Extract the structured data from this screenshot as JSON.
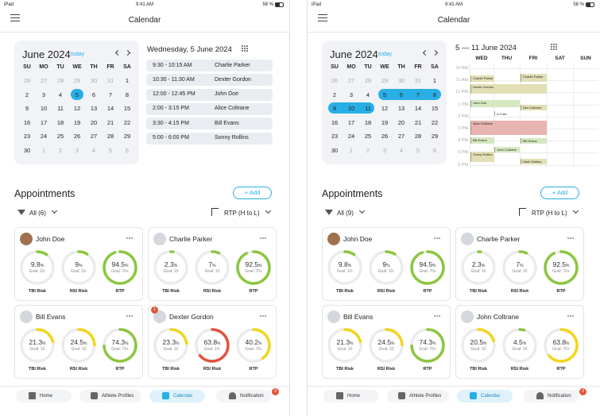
{
  "screens": [
    {
      "status": {
        "device": "iPad",
        "time": "9:41 AM",
        "battery": "58 %"
      },
      "title": "Calendar",
      "calendar": {
        "month": "June 2024",
        "today": "today",
        "weekdays": [
          "SU",
          "MO",
          "TU",
          "WE",
          "TH",
          "FR",
          "SA"
        ],
        "days": [
          [
            26,
            27,
            28,
            29,
            30,
            31,
            1
          ],
          [
            2,
            3,
            4,
            5,
            6,
            7,
            8
          ],
          [
            9,
            10,
            11,
            12,
            13,
            14,
            15
          ],
          [
            16,
            17,
            18,
            19,
            20,
            21,
            22
          ],
          [
            23,
            24,
            25,
            26,
            27,
            28,
            29
          ],
          [
            30,
            1,
            2,
            3,
            4,
            5,
            6
          ]
        ]
      },
      "day": {
        "title": "Wednesday, 5 June 2024",
        "events": [
          {
            "time": "9:30 - 10:15 AM",
            "name": "Charlie Parker"
          },
          {
            "time": "10:30 - 11:30 AM",
            "name": "Dexter Gordon"
          },
          {
            "time": "12:00 - 12:45 PM",
            "name": "John Doe"
          },
          {
            "time": "2:00 - 3:15 PM",
            "name": "Alice Coltrane"
          },
          {
            "time": "3:30 - 4:15 PM",
            "name": "Bill Evans"
          },
          {
            "time": "5:00 - 6:00 PM",
            "name": "Sonny Rollins"
          }
        ]
      },
      "appointments": {
        "title": "Appointments",
        "add": "+ Add",
        "filter": "All (6)",
        "sort": "RTP (H to L)",
        "cards": [
          {
            "name": "John Doe",
            "metrics": [
              {
                "value": 9.8,
                "unit": "%",
                "goal": "Goal: 10-",
                "label": "TBI Risk",
                "color": "#8cc63f"
              },
              {
                "value": 9.0,
                "unit": "%",
                "goal": "Goal: 10-",
                "label": "RSI Risk",
                "color": "#8cc63f"
              },
              {
                "value": 94.5,
                "unit": "%",
                "goal": "Goal: 70+",
                "label": "RTP",
                "color": "#8cc63f"
              }
            ]
          },
          {
            "name": "Charlie Parker",
            "metrics": [
              {
                "value": 2.3,
                "unit": "%",
                "goal": "Goal: 10",
                "label": "TBI Risk",
                "color": "#8cc63f"
              },
              {
                "value": 7.0,
                "unit": "%",
                "goal": "Goal: 10",
                "label": "RSI Risk",
                "color": "#8cc63f"
              },
              {
                "value": 92.5,
                "unit": "%",
                "goal": "Goal: 70+",
                "label": "RTP",
                "color": "#8cc63f"
              }
            ]
          },
          {
            "name": "Bill Evans",
            "metrics": [
              {
                "value": 21.3,
                "unit": "%",
                "goal": "Goal: 10",
                "label": "TBI Risk",
                "color": "#f2d51c"
              },
              {
                "value": 24.5,
                "unit": "%",
                "goal": "Goal: 10",
                "label": "RSI Risk",
                "color": "#f2d51c"
              },
              {
                "value": 74.3,
                "unit": "%",
                "goal": "Goal: 70+",
                "label": "RTP",
                "color": "#8cc63f"
              }
            ]
          },
          {
            "name": "Dexter Gordon",
            "badge": "1",
            "metrics": [
              {
                "value": 23.3,
                "unit": "%",
                "goal": "Goal: 10",
                "label": "TBI Risk",
                "color": "#f2d51c"
              },
              {
                "value": 63.8,
                "unit": "%",
                "goal": "Goal: 10-",
                "label": "RSI Risk",
                "color": "#e2533c"
              },
              {
                "value": 40.2,
                "unit": "%",
                "goal": "Goal: 70+",
                "label": "RTP",
                "color": "#f2d51c"
              }
            ]
          }
        ]
      },
      "nav": {
        "items": [
          "Home",
          "Athlete Profiles",
          "Calendar",
          "Notification"
        ],
        "badge": "3"
      }
    },
    {
      "status": {
        "device": "iPad",
        "time": "9:41 AM",
        "battery": "58 %"
      },
      "title": "Calendar",
      "calendar": {
        "month": "June 2024",
        "today": "today",
        "weekdays": [
          "SU",
          "MO",
          "TU",
          "WE",
          "TH",
          "FR",
          "SA"
        ],
        "days": [
          [
            26,
            27,
            28,
            29,
            30,
            31,
            1
          ],
          [
            2,
            3,
            4,
            5,
            6,
            7,
            8
          ],
          [
            9,
            10,
            11,
            12,
            13,
            14,
            15
          ],
          [
            16,
            17,
            18,
            19,
            20,
            21,
            22
          ],
          [
            23,
            24,
            25,
            26,
            27,
            28,
            29
          ],
          [
            30,
            1,
            2,
            3,
            4,
            5,
            6
          ]
        ]
      },
      "week": {
        "title": "5 — 11 June 2024",
        "days": [
          "WED",
          "THU",
          "FRI",
          "SAT",
          "SUN"
        ],
        "hours": [
          "10 AM",
          "11 AM",
          "12 PM",
          "1 PM",
          "2 PM",
          "3 PM",
          "4 PM",
          "5 PM",
          "6 PM"
        ],
        "events": [
          "Charlie Parker",
          "Dexter Gordon",
          "John Doe",
          "Alice Coltrane",
          "Bill Evans",
          "Sonny Rollins",
          "A Colin",
          "John Coltrane",
          "Charlie Parker",
          "Dex Coltrane",
          "Bill Evans",
          "Hank Mobley"
        ]
      },
      "appointments": {
        "title": "Appointments",
        "add": "+ Add",
        "filter": "All (9)",
        "sort": "RTP (H to L)",
        "cards": [
          {
            "name": "John Doe",
            "metrics": [
              {
                "value": 9.8,
                "unit": "%",
                "goal": "Goal: 10-",
                "label": "TBI Risk",
                "color": "#8cc63f"
              },
              {
                "value": 9.0,
                "unit": "%",
                "goal": "Goal: 10-",
                "label": "RSI Risk",
                "color": "#8cc63f"
              },
              {
                "value": 94.5,
                "unit": "%",
                "goal": "Goal: 70+",
                "label": "RTP",
                "color": "#8cc63f"
              }
            ]
          },
          {
            "name": "Charlie Parker",
            "metrics": [
              {
                "value": 2.3,
                "unit": "%",
                "goal": "Goal: 10",
                "label": "TBI Risk",
                "color": "#8cc63f"
              },
              {
                "value": 7.0,
                "unit": "%",
                "goal": "Goal: 10",
                "label": "RSI Risk",
                "color": "#8cc63f"
              },
              {
                "value": 92.5,
                "unit": "%",
                "goal": "Goal: 70+",
                "label": "RTP",
                "color": "#8cc63f"
              }
            ]
          },
          {
            "name": "Bill Evans",
            "metrics": [
              {
                "value": 21.3,
                "unit": "%",
                "goal": "Goal: 10",
                "label": "TBI Risk",
                "color": "#f2d51c"
              },
              {
                "value": 24.5,
                "unit": "%",
                "goal": "Goal: 10",
                "label": "RSI Risk",
                "color": "#f2d51c"
              },
              {
                "value": 74.3,
                "unit": "%",
                "goal": "Goal: 70+",
                "label": "RTP",
                "color": "#8cc63f"
              }
            ]
          },
          {
            "name": "John Coltrane",
            "metrics": [
              {
                "value": 20.5,
                "unit": "%",
                "goal": "Goal: 10",
                "label": "TBI Risk",
                "color": "#f2d51c"
              },
              {
                "value": 4.5,
                "unit": "%",
                "goal": "Goal: 10",
                "label": "RSI Risk",
                "color": "#8cc63f"
              },
              {
                "value": 63.8,
                "unit": "%",
                "goal": "Goal: 70+",
                "label": "RTP",
                "color": "#f2d51c"
              }
            ]
          }
        ]
      },
      "nav": {
        "items": [
          "Home",
          "Athlete Profiles",
          "Calendar",
          "Notification"
        ],
        "badge": "3"
      }
    }
  ]
}
